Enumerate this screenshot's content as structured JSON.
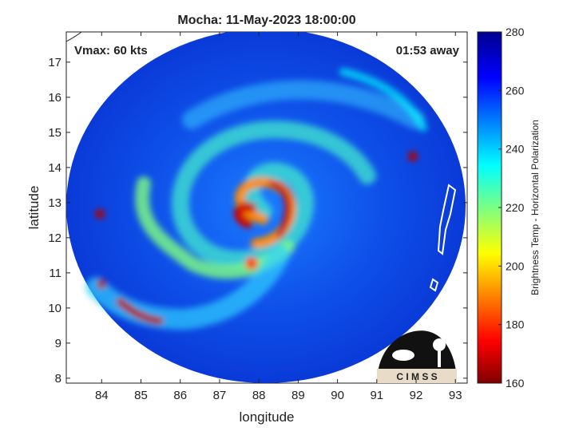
{
  "title": "Mocha: 11-May-2023 18:00:00",
  "annotations": {
    "left": "Vmax: 60 kts",
    "right": "01:53 away"
  },
  "x_axis": {
    "label": "longitude",
    "lim": [
      83.1,
      93.3
    ],
    "ticks": [
      84,
      85,
      86,
      87,
      88,
      89,
      90,
      91,
      92,
      93
    ]
  },
  "y_axis": {
    "label": "latitude",
    "lim": [
      7.86,
      17.86
    ],
    "ticks": [
      8,
      9,
      10,
      11,
      12,
      13,
      14,
      15,
      16,
      17
    ]
  },
  "colorbar": {
    "label": "Brightness Temp - Horizontal Polarization",
    "lim": [
      160,
      280
    ],
    "ticks": [
      160,
      180,
      200,
      220,
      240,
      260,
      280
    ]
  },
  "logo_text": "C I M S S"
}
